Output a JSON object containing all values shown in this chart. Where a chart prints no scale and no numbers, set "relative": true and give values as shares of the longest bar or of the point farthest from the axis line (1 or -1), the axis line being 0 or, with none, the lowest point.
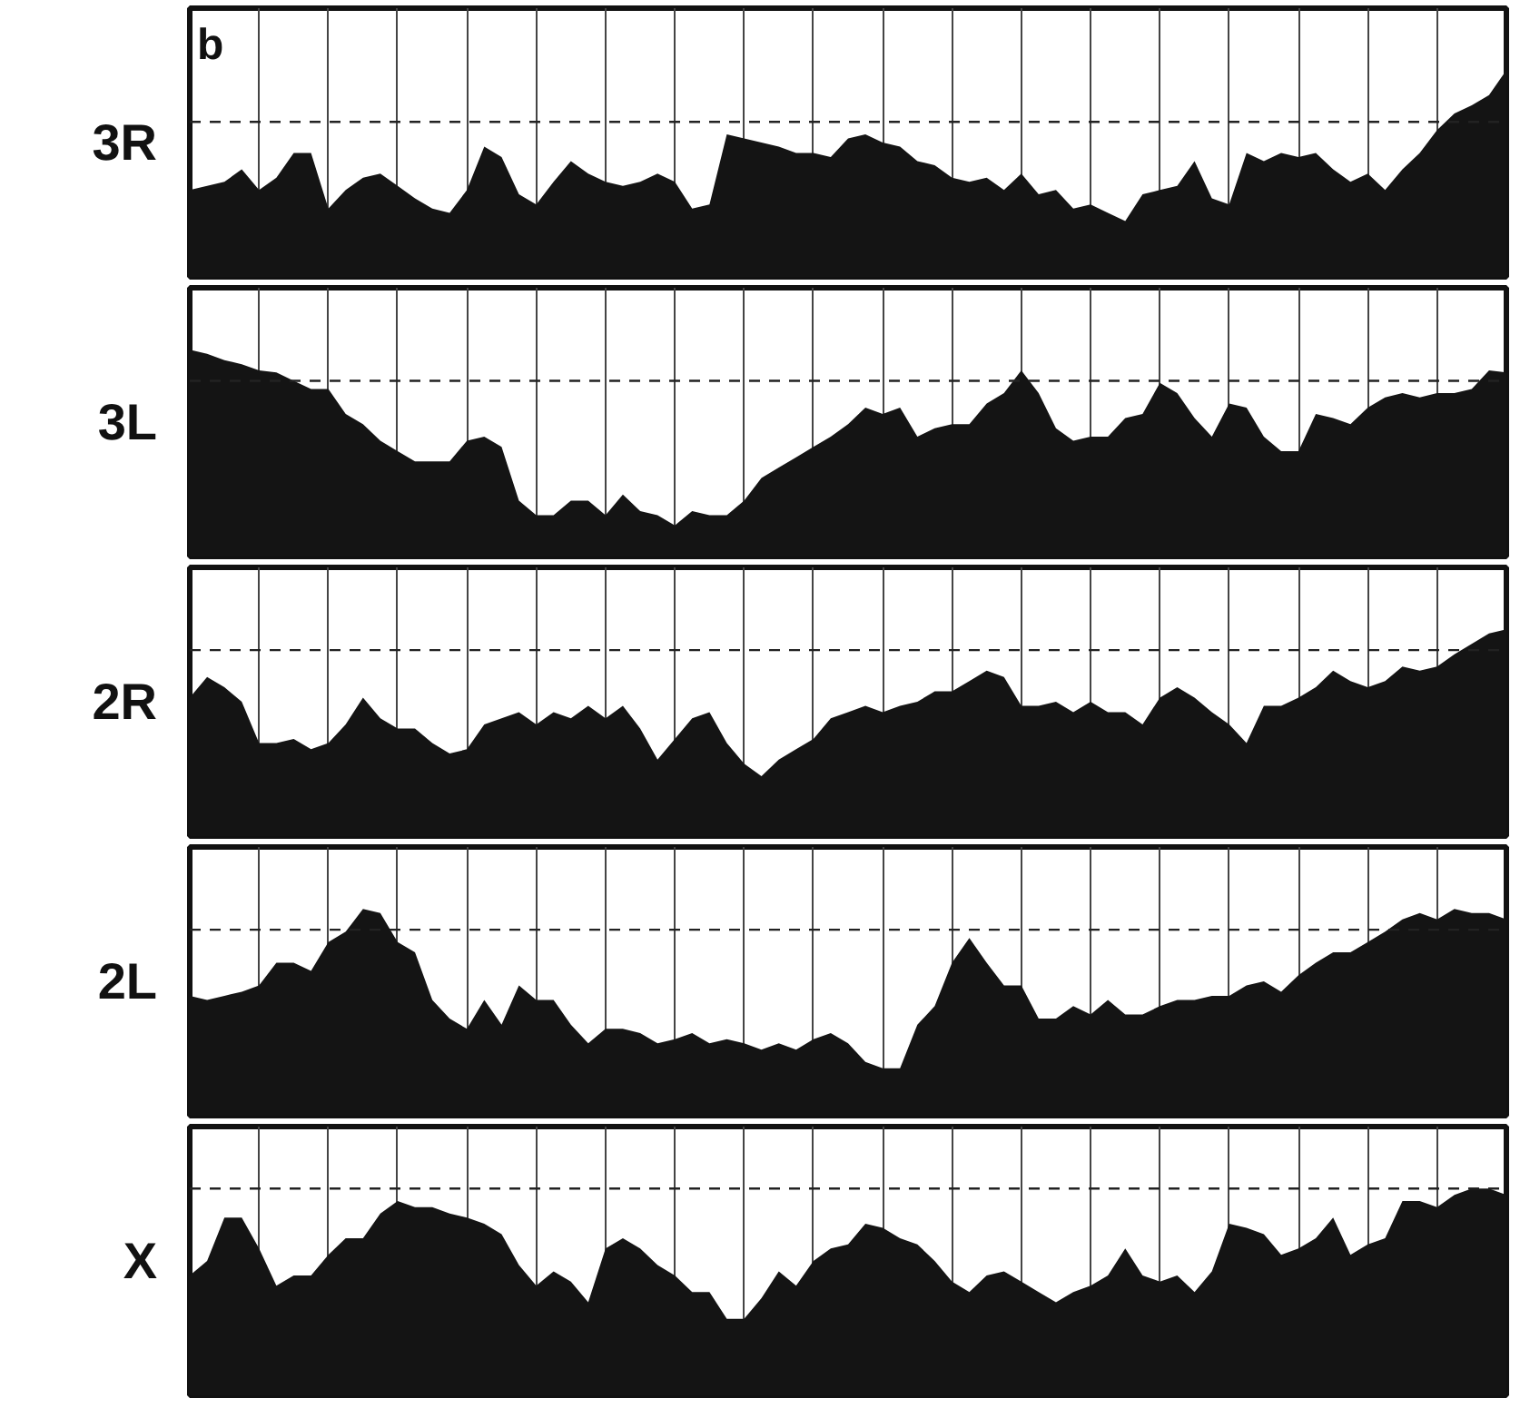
{
  "chart_data": [
    {
      "type": "area",
      "relative": true,
      "ylabel": "3R",
      "annotations": [
        "b"
      ],
      "categories": [
        null,
        null,
        null,
        null,
        null,
        null,
        null,
        null,
        null,
        null,
        null,
        null,
        null,
        null,
        null,
        null,
        null,
        null,
        null,
        null,
        null,
        null,
        null,
        null,
        null,
        null,
        null,
        null,
        null,
        null,
        null,
        null,
        null,
        null,
        null,
        null,
        null,
        null,
        null,
        null,
        null,
        null,
        null,
        null,
        null,
        null,
        null,
        null,
        null,
        null,
        null,
        null,
        null,
        null,
        null,
        null,
        null,
        null,
        null,
        null,
        null,
        null,
        null,
        null,
        null,
        null,
        null,
        null,
        null,
        null,
        null,
        null,
        null,
        null,
        null,
        null,
        null
      ],
      "tick_labels": false,
      "grid": "x",
      "ref_lines": [
        {
          "axis": "y",
          "value": 0.75,
          "line_style": "dashed",
          "color": "#222222"
        }
      ],
      "series": [
        {
          "color": "#141414",
          "values": [
            0.42,
            0.44,
            0.46,
            0.52,
            0.42,
            0.48,
            0.6,
            0.6,
            0.33,
            0.42,
            0.48,
            0.5,
            0.44,
            0.38,
            0.33,
            0.31,
            0.42,
            0.63,
            0.58,
            0.4,
            0.35,
            0.46,
            0.56,
            0.5,
            0.46,
            0.44,
            0.46,
            0.5,
            0.46,
            0.33,
            0.35,
            0.69,
            0.67,
            0.65,
            0.63,
            0.6,
            0.6,
            0.58,
            0.67,
            0.69,
            0.65,
            0.63,
            0.56,
            0.54,
            0.48,
            0.46,
            0.48,
            0.42,
            0.5,
            0.4,
            0.42,
            0.33,
            0.35,
            0.31,
            0.27,
            0.4,
            0.42,
            0.44,
            0.56,
            0.38,
            0.35,
            0.6,
            0.56,
            0.6,
            0.58,
            0.6,
            0.52,
            0.46,
            0.5,
            0.42,
            0.52,
            0.6,
            0.71,
            0.79,
            0.83,
            0.88,
            1
          ]
        }
      ]
    },
    {
      "type": "area",
      "relative": true,
      "ylabel": "3L",
      "categories": [
        null,
        null,
        null,
        null,
        null,
        null,
        null,
        null,
        null,
        null,
        null,
        null,
        null,
        null,
        null,
        null,
        null,
        null,
        null,
        null,
        null,
        null,
        null,
        null,
        null,
        null,
        null,
        null,
        null,
        null,
        null,
        null,
        null,
        null,
        null,
        null,
        null,
        null,
        null,
        null,
        null,
        null,
        null,
        null,
        null,
        null,
        null,
        null,
        null,
        null,
        null,
        null,
        null,
        null,
        null,
        null,
        null,
        null,
        null,
        null,
        null,
        null,
        null,
        null,
        null,
        null,
        null,
        null,
        null,
        null,
        null,
        null,
        null,
        null,
        null,
        null,
        null
      ],
      "tick_labels": false,
      "grid": "x",
      "ref_lines": [
        {
          "axis": "y",
          "value": 0.85,
          "line_style": "dashed",
          "color": "#222222"
        }
      ],
      "series": [
        {
          "color": "#141414",
          "values": [
            1,
            0.98,
            0.95,
            0.93,
            0.9,
            0.89,
            0.85,
            0.81,
            0.81,
            0.69,
            0.64,
            0.56,
            0.51,
            0.46,
            0.46,
            0.46,
            0.56,
            0.58,
            0.53,
            0.27,
            0.2,
            0.2,
            0.27,
            0.27,
            0.2,
            0.3,
            0.22,
            0.2,
            0.15,
            0.22,
            0.2,
            0.2,
            0.27,
            0.38,
            0.43,
            0.48,
            0.53,
            0.58,
            0.64,
            0.72,
            0.69,
            0.72,
            0.58,
            0.62,
            0.64,
            0.64,
            0.74,
            0.79,
            0.9,
            0.79,
            0.62,
            0.56,
            0.58,
            0.58,
            0.67,
            0.69,
            0.84,
            0.79,
            0.67,
            0.58,
            0.74,
            0.72,
            0.58,
            0.51,
            0.51,
            0.69,
            0.67,
            0.64,
            0.72,
            0.77,
            0.79,
            0.77,
            0.79,
            0.79,
            0.81,
            0.9,
            0.89
          ]
        }
      ]
    },
    {
      "type": "area",
      "relative": true,
      "ylabel": "2R",
      "categories": [
        null,
        null,
        null,
        null,
        null,
        null,
        null,
        null,
        null,
        null,
        null,
        null,
        null,
        null,
        null,
        null,
        null,
        null,
        null,
        null,
        null,
        null,
        null,
        null,
        null,
        null,
        null,
        null,
        null,
        null,
        null,
        null,
        null,
        null,
        null,
        null,
        null,
        null,
        null,
        null,
        null,
        null,
        null,
        null,
        null,
        null,
        null,
        null,
        null,
        null,
        null,
        null,
        null,
        null,
        null,
        null,
        null,
        null,
        null,
        null,
        null,
        null,
        null,
        null,
        null,
        null,
        null,
        null,
        null,
        null,
        null,
        null,
        null,
        null,
        null,
        null,
        null
      ],
      "tick_labels": false,
      "grid": "x",
      "ref_lines": [
        {
          "axis": "y",
          "value": 0.9,
          "line_style": "dashed",
          "color": "#222222"
        }
      ],
      "series": [
        {
          "color": "#141414",
          "values": [
            0.67,
            0.77,
            0.72,
            0.65,
            0.45,
            0.45,
            0.47,
            0.42,
            0.45,
            0.54,
            0.67,
            0.57,
            0.52,
            0.52,
            0.45,
            0.4,
            0.42,
            0.54,
            0.57,
            0.6,
            0.54,
            0.6,
            0.57,
            0.63,
            0.57,
            0.63,
            0.52,
            0.37,
            0.47,
            0.57,
            0.6,
            0.45,
            0.35,
            0.29,
            0.37,
            0.42,
            0.47,
            0.57,
            0.6,
            0.63,
            0.6,
            0.63,
            0.65,
            0.7,
            0.7,
            0.75,
            0.8,
            0.77,
            0.63,
            0.63,
            0.65,
            0.6,
            0.65,
            0.6,
            0.6,
            0.54,
            0.67,
            0.72,
            0.67,
            0.6,
            0.54,
            0.45,
            0.63,
            0.63,
            0.67,
            0.72,
            0.8,
            0.75,
            0.72,
            0.75,
            0.82,
            0.8,
            0.82,
            0.88,
            0.93,
            0.98,
            1
          ]
        }
      ]
    },
    {
      "type": "area",
      "relative": true,
      "ylabel": "2L",
      "categories": [
        null,
        null,
        null,
        null,
        null,
        null,
        null,
        null,
        null,
        null,
        null,
        null,
        null,
        null,
        null,
        null,
        null,
        null,
        null,
        null,
        null,
        null,
        null,
        null,
        null,
        null,
        null,
        null,
        null,
        null,
        null,
        null,
        null,
        null,
        null,
        null,
        null,
        null,
        null,
        null,
        null,
        null,
        null,
        null,
        null,
        null,
        null,
        null,
        null,
        null,
        null,
        null,
        null,
        null,
        null,
        null,
        null,
        null,
        null,
        null,
        null,
        null,
        null,
        null,
        null,
        null,
        null,
        null,
        null,
        null,
        null,
        null,
        null,
        null,
        null,
        null,
        null
      ],
      "tick_labels": false,
      "grid": "x",
      "ref_lines": [
        {
          "axis": "y",
          "value": 0.9,
          "line_style": "dashed",
          "color": "#222222"
        }
      ],
      "series": [
        {
          "color": "#141414",
          "values": [
            0.58,
            0.56,
            0.58,
            0.6,
            0.63,
            0.74,
            0.74,
            0.7,
            0.84,
            0.89,
            1,
            0.98,
            0.84,
            0.79,
            0.56,
            0.47,
            0.42,
            0.56,
            0.44,
            0.63,
            0.56,
            0.56,
            0.44,
            0.35,
            0.42,
            0.42,
            0.4,
            0.35,
            0.37,
            0.4,
            0.35,
            0.37,
            0.35,
            0.32,
            0.35,
            0.32,
            0.37,
            0.4,
            0.35,
            0.26,
            0.23,
            0.23,
            0.44,
            0.53,
            0.74,
            0.86,
            0.74,
            0.63,
            0.63,
            0.47,
            0.47,
            0.53,
            0.49,
            0.56,
            0.49,
            0.49,
            0.53,
            0.56,
            0.56,
            0.58,
            0.58,
            0.63,
            0.65,
            0.6,
            0.68,
            0.74,
            0.79,
            0.79,
            0.84,
            0.89,
            0.95,
            0.98,
            0.95,
            1,
            0.98,
            0.98,
            0.95
          ]
        }
      ]
    },
    {
      "type": "area",
      "relative": true,
      "ylabel": "X",
      "categories": [
        null,
        null,
        null,
        null,
        null,
        null,
        null,
        null,
        null,
        null,
        null,
        null,
        null,
        null,
        null,
        null,
        null,
        null,
        null,
        null,
        null,
        null,
        null,
        null,
        null,
        null,
        null,
        null,
        null,
        null,
        null,
        null,
        null,
        null,
        null,
        null,
        null,
        null,
        null,
        null,
        null,
        null,
        null,
        null,
        null,
        null,
        null,
        null,
        null,
        null,
        null,
        null,
        null,
        null,
        null,
        null,
        null,
        null,
        null,
        null,
        null,
        null,
        null,
        null,
        null,
        null,
        null,
        null,
        null,
        null,
        null,
        null,
        null,
        null,
        null,
        null,
        null
      ],
      "tick_labels": false,
      "grid": "x",
      "ref_lines": [
        {
          "axis": "y",
          "value": 1,
          "line_style": "dashed",
          "color": "#222222"
        }
      ],
      "series": [
        {
          "color": "#141414",
          "values": [
            0.58,
            0.65,
            0.86,
            0.86,
            0.71,
            0.53,
            0.58,
            0.58,
            0.68,
            0.76,
            0.76,
            0.88,
            0.94,
            0.91,
            0.91,
            0.88,
            0.86,
            0.83,
            0.78,
            0.63,
            0.53,
            0.6,
            0.55,
            0.45,
            0.71,
            0.76,
            0.71,
            0.63,
            0.58,
            0.5,
            0.5,
            0.37,
            0.37,
            0.47,
            0.6,
            0.53,
            0.65,
            0.71,
            0.73,
            0.83,
            0.81,
            0.76,
            0.73,
            0.65,
            0.55,
            0.5,
            0.58,
            0.6,
            0.55,
            0.5,
            0.45,
            0.5,
            0.53,
            0.58,
            0.71,
            0.58,
            0.55,
            0.58,
            0.5,
            0.6,
            0.83,
            0.81,
            0.78,
            0.68,
            0.71,
            0.76,
            0.86,
            0.68,
            0.73,
            0.76,
            0.94,
            0.94,
            0.91,
            0.97,
            1,
            1,
            0.97
          ]
        }
      ]
    }
  ]
}
